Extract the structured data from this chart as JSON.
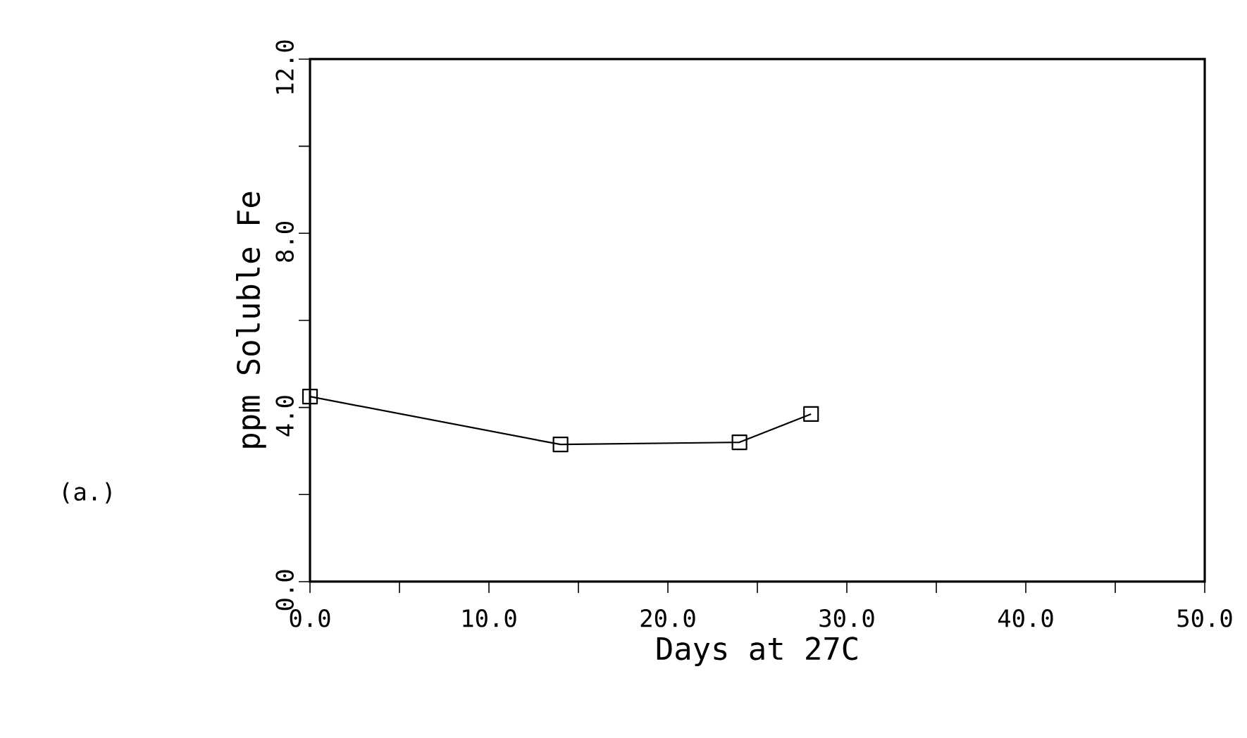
{
  "chart_data": {
    "type": "line",
    "xlabel": "Days at 27C",
    "ylabel": "ppm Soluble Fe",
    "annotations": [
      "(a.)"
    ],
    "x": [
      0,
      14,
      24,
      28
    ],
    "series": [
      {
        "color": "#000000",
        "values": [
          4.25,
          3.15,
          3.2,
          3.85
        ]
      }
    ],
    "marker": "square",
    "line_style": "solid",
    "xlim": [
      0,
      50
    ],
    "ylim": [
      0,
      12
    ],
    "xticks": [
      {
        "value": 0,
        "label": "0.0"
      },
      {
        "value": 5,
        "label": null
      },
      {
        "value": 10,
        "label": "10.0"
      },
      {
        "value": 15,
        "label": null
      },
      {
        "value": 20,
        "label": "20.0"
      },
      {
        "value": 25,
        "label": null
      },
      {
        "value": 30,
        "label": "30.0"
      },
      {
        "value": 35,
        "label": null
      },
      {
        "value": 40,
        "label": "40.0"
      },
      {
        "value": 45,
        "label": null
      },
      {
        "value": 50,
        "label": "50.0"
      }
    ],
    "yticks": [
      {
        "value": 0,
        "label": "0.0"
      },
      {
        "value": 2,
        "label": null
      },
      {
        "value": 4,
        "label": "4.0"
      },
      {
        "value": 6,
        "label": null
      },
      {
        "value": 8,
        "label": "8.0"
      },
      {
        "value": 10,
        "label": null
      },
      {
        "value": 12,
        "label": "12.0"
      }
    ]
  }
}
